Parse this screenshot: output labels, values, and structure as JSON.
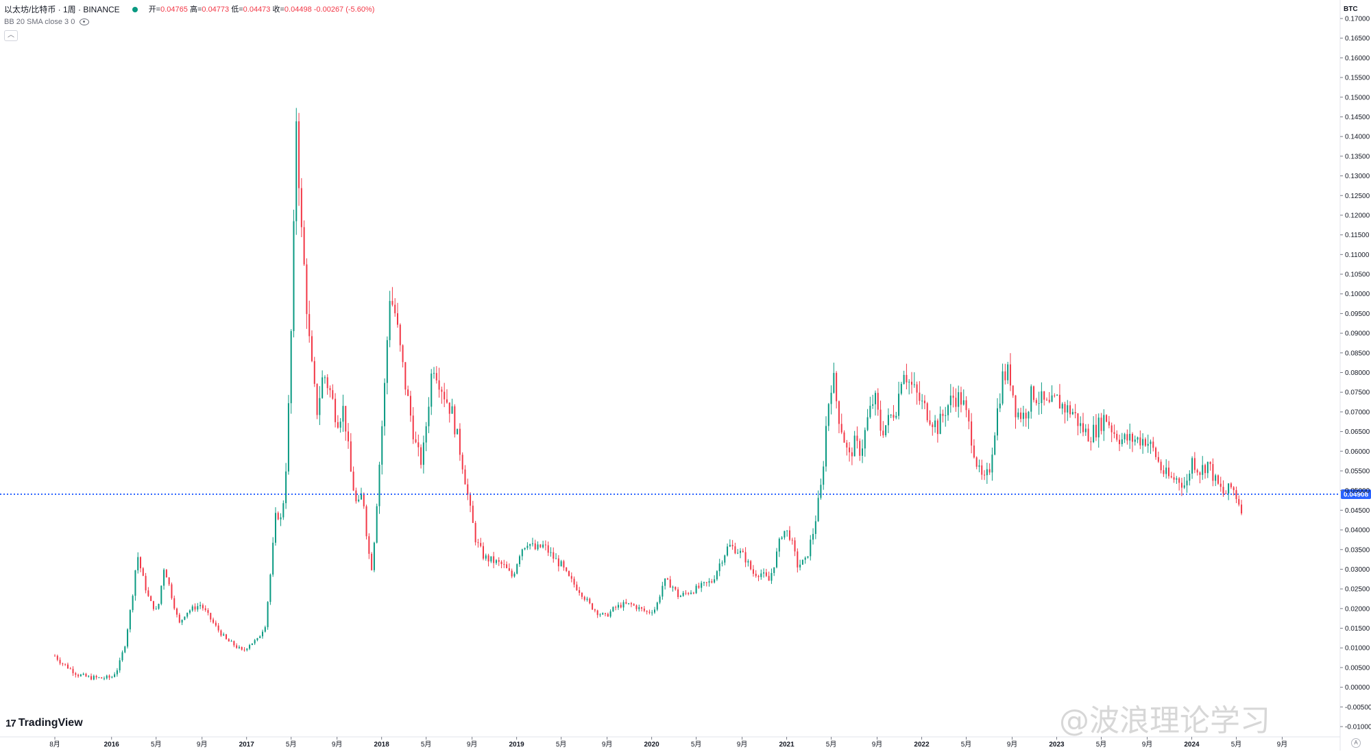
{
  "header": {
    "symbol_title": "以太坊/比特币 · 1周 · BINANCE",
    "ohlc": {
      "open_label": "开=",
      "open": "0.04765",
      "high_label": "高=",
      "high": "0.04773",
      "low_label": "低=",
      "low": "0.04473",
      "close_label": "收=",
      "close": "0.04498",
      "change": "-0.00267 (-5.60%)"
    },
    "indicator": "BB 20 SMA close 3 0",
    "collapse_icon": "chevron-up-icon"
  },
  "branding": {
    "logo_text": "TradingView"
  },
  "watermark": {
    "text": "@波浪理论学习"
  },
  "colors": {
    "up": "#089981",
    "down": "#f23645",
    "hline": "#2962ff",
    "axis_text": "#131722",
    "grid_border": "#e0e3eb"
  },
  "chart_data": {
    "type": "candlestick",
    "title": "以太坊/比特币 · 1周 · BINANCE",
    "y_unit": "BTC",
    "ylim": [
      -0.01,
      0.17
    ],
    "y_ticks": [
      "0.17000",
      "0.16500",
      "0.16000",
      "0.15500",
      "0.15000",
      "0.14500",
      "0.14000",
      "0.13500",
      "0.13000",
      "0.12500",
      "0.12000",
      "0.11500",
      "0.11000",
      "0.10500",
      "0.10000",
      "0.09500",
      "0.09000",
      "0.08500",
      "0.08000",
      "0.07500",
      "0.07000",
      "0.06500",
      "0.06000",
      "0.05500",
      "0.05000",
      "0.04500",
      "0.04000",
      "0.03500",
      "0.03000",
      "0.02500",
      "0.02000",
      "0.01500",
      "0.01000",
      "0.00500",
      "0.00000",
      "-0.00500",
      "-0.01000"
    ],
    "x_ticks": [
      {
        "label": "8月",
        "t": 2015.58,
        "bold": false
      },
      {
        "label": "2016",
        "t": 2016.0,
        "bold": true
      },
      {
        "label": "5月",
        "t": 2016.33,
        "bold": false
      },
      {
        "label": "9月",
        "t": 2016.67,
        "bold": false
      },
      {
        "label": "2017",
        "t": 2017.0,
        "bold": true
      },
      {
        "label": "5月",
        "t": 2017.33,
        "bold": false
      },
      {
        "label": "9月",
        "t": 2017.67,
        "bold": false
      },
      {
        "label": "2018",
        "t": 2018.0,
        "bold": true
      },
      {
        "label": "5月",
        "t": 2018.33,
        "bold": false
      },
      {
        "label": "9月",
        "t": 2018.67,
        "bold": false
      },
      {
        "label": "2019",
        "t": 2019.0,
        "bold": true
      },
      {
        "label": "5月",
        "t": 2019.33,
        "bold": false
      },
      {
        "label": "9月",
        "t": 2019.67,
        "bold": false
      },
      {
        "label": "2020",
        "t": 2020.0,
        "bold": true
      },
      {
        "label": "5月",
        "t": 2020.33,
        "bold": false
      },
      {
        "label": "9月",
        "t": 2020.67,
        "bold": false
      },
      {
        "label": "2021",
        "t": 2021.0,
        "bold": true
      },
      {
        "label": "5月",
        "t": 2021.33,
        "bold": false
      },
      {
        "label": "9月",
        "t": 2021.67,
        "bold": false
      },
      {
        "label": "2022",
        "t": 2022.0,
        "bold": true
      },
      {
        "label": "5月",
        "t": 2022.33,
        "bold": false
      },
      {
        "label": "9月",
        "t": 2022.67,
        "bold": false
      },
      {
        "label": "2023",
        "t": 2023.0,
        "bold": true
      },
      {
        "label": "5月",
        "t": 2023.33,
        "bold": false
      },
      {
        "label": "9月",
        "t": 2023.67,
        "bold": false
      },
      {
        "label": "2024",
        "t": 2024.0,
        "bold": true
      },
      {
        "label": "5月",
        "t": 2024.33,
        "bold": false
      },
      {
        "label": "9月",
        "t": 2024.67,
        "bold": false
      }
    ],
    "xlim": [
      2015.58,
      2024.82
    ],
    "horizontal_line": {
      "value": 0.04908,
      "label": "0.04908",
      "style": "dotted"
    },
    "close_series": [
      {
        "t": 2015.58,
        "v": 0.008
      },
      {
        "t": 2015.62,
        "v": 0.0065
      },
      {
        "t": 2015.68,
        "v": 0.005
      },
      {
        "t": 2015.75,
        "v": 0.0032
      },
      {
        "t": 2015.83,
        "v": 0.0025
      },
      {
        "t": 2015.92,
        "v": 0.0023
      },
      {
        "t": 2016.0,
        "v": 0.0025
      },
      {
        "t": 2016.05,
        "v": 0.005
      },
      {
        "t": 2016.1,
        "v": 0.011
      },
      {
        "t": 2016.15,
        "v": 0.022
      },
      {
        "t": 2016.19,
        "v": 0.034
      },
      {
        "t": 2016.23,
        "v": 0.028
      },
      {
        "t": 2016.28,
        "v": 0.022
      },
      {
        "t": 2016.34,
        "v": 0.019
      },
      {
        "t": 2016.39,
        "v": 0.031
      },
      {
        "t": 2016.44,
        "v": 0.024
      },
      {
        "t": 2016.5,
        "v": 0.016
      },
      {
        "t": 2016.55,
        "v": 0.019
      },
      {
        "t": 2016.6,
        "v": 0.02
      },
      {
        "t": 2016.66,
        "v": 0.021
      },
      {
        "t": 2016.72,
        "v": 0.018
      },
      {
        "t": 2016.78,
        "v": 0.015
      },
      {
        "t": 2016.85,
        "v": 0.012
      },
      {
        "t": 2016.92,
        "v": 0.0105
      },
      {
        "t": 2016.97,
        "v": 0.009
      },
      {
        "t": 2017.02,
        "v": 0.011
      },
      {
        "t": 2017.08,
        "v": 0.012
      },
      {
        "t": 2017.14,
        "v": 0.016
      },
      {
        "t": 2017.18,
        "v": 0.03
      },
      {
        "t": 2017.22,
        "v": 0.045
      },
      {
        "t": 2017.26,
        "v": 0.042
      },
      {
        "t": 2017.3,
        "v": 0.06
      },
      {
        "t": 2017.34,
        "v": 0.1
      },
      {
        "t": 2017.37,
        "v": 0.148
      },
      {
        "t": 2017.4,
        "v": 0.118
      },
      {
        "t": 2017.43,
        "v": 0.105
      },
      {
        "t": 2017.47,
        "v": 0.085
      },
      {
        "t": 2017.52,
        "v": 0.07
      },
      {
        "t": 2017.57,
        "v": 0.08
      },
      {
        "t": 2017.62,
        "v": 0.075
      },
      {
        "t": 2017.67,
        "v": 0.068
      },
      {
        "t": 2017.72,
        "v": 0.071
      },
      {
        "t": 2017.77,
        "v": 0.055
      },
      {
        "t": 2017.82,
        "v": 0.045
      },
      {
        "t": 2017.86,
        "v": 0.05
      },
      {
        "t": 2017.9,
        "v": 0.035
      },
      {
        "t": 2017.93,
        "v": 0.03
      },
      {
        "t": 2017.96,
        "v": 0.045
      },
      {
        "t": 2018.02,
        "v": 0.075
      },
      {
        "t": 2018.06,
        "v": 0.1
      },
      {
        "t": 2018.1,
        "v": 0.095
      },
      {
        "t": 2018.14,
        "v": 0.085
      },
      {
        "t": 2018.18,
        "v": 0.076
      },
      {
        "t": 2018.22,
        "v": 0.068
      },
      {
        "t": 2018.26,
        "v": 0.06
      },
      {
        "t": 2018.3,
        "v": 0.057
      },
      {
        "t": 2018.34,
        "v": 0.07
      },
      {
        "t": 2018.38,
        "v": 0.083
      },
      {
        "t": 2018.42,
        "v": 0.079
      },
      {
        "t": 2018.47,
        "v": 0.074
      },
      {
        "t": 2018.52,
        "v": 0.07
      },
      {
        "t": 2018.57,
        "v": 0.062
      },
      {
        "t": 2018.61,
        "v": 0.055
      },
      {
        "t": 2018.65,
        "v": 0.046
      },
      {
        "t": 2018.7,
        "v": 0.037
      },
      {
        "t": 2018.76,
        "v": 0.033
      },
      {
        "t": 2018.83,
        "v": 0.032
      },
      {
        "t": 2018.9,
        "v": 0.031
      },
      {
        "t": 2018.97,
        "v": 0.028
      },
      {
        "t": 2019.03,
        "v": 0.035
      },
      {
        "t": 2019.08,
        "v": 0.037
      },
      {
        "t": 2019.14,
        "v": 0.035
      },
      {
        "t": 2019.2,
        "v": 0.036
      },
      {
        "t": 2019.27,
        "v": 0.033
      },
      {
        "t": 2019.33,
        "v": 0.031
      },
      {
        "t": 2019.38,
        "v": 0.028
      },
      {
        "t": 2019.43,
        "v": 0.026
      },
      {
        "t": 2019.48,
        "v": 0.024
      },
      {
        "t": 2019.54,
        "v": 0.021
      },
      {
        "t": 2019.6,
        "v": 0.019
      },
      {
        "t": 2019.66,
        "v": 0.018
      },
      {
        "t": 2019.72,
        "v": 0.02
      },
      {
        "t": 2019.78,
        "v": 0.021
      },
      {
        "t": 2019.85,
        "v": 0.021
      },
      {
        "t": 2019.91,
        "v": 0.02
      },
      {
        "t": 2019.97,
        "v": 0.019
      },
      {
        "t": 2020.03,
        "v": 0.02
      },
      {
        "t": 2020.09,
        "v": 0.027
      },
      {
        "t": 2020.15,
        "v": 0.026
      },
      {
        "t": 2020.2,
        "v": 0.023
      },
      {
        "t": 2020.26,
        "v": 0.024
      },
      {
        "t": 2020.33,
        "v": 0.025
      },
      {
        "t": 2020.39,
        "v": 0.026
      },
      {
        "t": 2020.45,
        "v": 0.027
      },
      {
        "t": 2020.51,
        "v": 0.032
      },
      {
        "t": 2020.57,
        "v": 0.036
      },
      {
        "t": 2020.63,
        "v": 0.035
      },
      {
        "t": 2020.69,
        "v": 0.033
      },
      {
        "t": 2020.75,
        "v": 0.029
      },
      {
        "t": 2020.81,
        "v": 0.029
      },
      {
        "t": 2020.87,
        "v": 0.027
      },
      {
        "t": 2020.92,
        "v": 0.033
      },
      {
        "t": 2020.97,
        "v": 0.04
      },
      {
        "t": 2021.02,
        "v": 0.039
      },
      {
        "t": 2021.08,
        "v": 0.031
      },
      {
        "t": 2021.14,
        "v": 0.032
      },
      {
        "t": 2021.2,
        "v": 0.04
      },
      {
        "t": 2021.26,
        "v": 0.052
      },
      {
        "t": 2021.3,
        "v": 0.07
      },
      {
        "t": 2021.34,
        "v": 0.08
      },
      {
        "t": 2021.38,
        "v": 0.07
      },
      {
        "t": 2021.42,
        "v": 0.064
      },
      {
        "t": 2021.46,
        "v": 0.058
      },
      {
        "t": 2021.5,
        "v": 0.062
      },
      {
        "t": 2021.55,
        "v": 0.06
      },
      {
        "t": 2021.6,
        "v": 0.068
      },
      {
        "t": 2021.65,
        "v": 0.074
      },
      {
        "t": 2021.7,
        "v": 0.065
      },
      {
        "t": 2021.76,
        "v": 0.068
      },
      {
        "t": 2021.82,
        "v": 0.072
      },
      {
        "t": 2021.86,
        "v": 0.082
      },
      {
        "t": 2021.9,
        "v": 0.078
      },
      {
        "t": 2021.95,
        "v": 0.075
      },
      {
        "t": 2022.0,
        "v": 0.072
      },
      {
        "t": 2022.06,
        "v": 0.069
      },
      {
        "t": 2022.12,
        "v": 0.066
      },
      {
        "t": 2022.18,
        "v": 0.071
      },
      {
        "t": 2022.24,
        "v": 0.074
      },
      {
        "t": 2022.3,
        "v": 0.073
      },
      {
        "t": 2022.36,
        "v": 0.065
      },
      {
        "t": 2022.42,
        "v": 0.055
      },
      {
        "t": 2022.46,
        "v": 0.052
      },
      {
        "t": 2022.5,
        "v": 0.055
      },
      {
        "t": 2022.55,
        "v": 0.068
      },
      {
        "t": 2022.6,
        "v": 0.079
      },
      {
        "t": 2022.65,
        "v": 0.08
      },
      {
        "t": 2022.7,
        "v": 0.07
      },
      {
        "t": 2022.76,
        "v": 0.069
      },
      {
        "t": 2022.82,
        "v": 0.075
      },
      {
        "t": 2022.88,
        "v": 0.073
      },
      {
        "t": 2022.94,
        "v": 0.071
      },
      {
        "t": 2023.0,
        "v": 0.073
      },
      {
        "t": 2023.06,
        "v": 0.071
      },
      {
        "t": 2023.12,
        "v": 0.07
      },
      {
        "t": 2023.18,
        "v": 0.066
      },
      {
        "t": 2023.24,
        "v": 0.064
      },
      {
        "t": 2023.3,
        "v": 0.066
      },
      {
        "t": 2023.36,
        "v": 0.069
      },
      {
        "t": 2023.42,
        "v": 0.065
      },
      {
        "t": 2023.48,
        "v": 0.063
      },
      {
        "t": 2023.54,
        "v": 0.063
      },
      {
        "t": 2023.6,
        "v": 0.063
      },
      {
        "t": 2023.66,
        "v": 0.063
      },
      {
        "t": 2023.72,
        "v": 0.06
      },
      {
        "t": 2023.78,
        "v": 0.055
      },
      {
        "t": 2023.84,
        "v": 0.053
      },
      {
        "t": 2023.9,
        "v": 0.053
      },
      {
        "t": 2023.96,
        "v": 0.051
      },
      {
        "t": 2024.0,
        "v": 0.058
      },
      {
        "t": 2024.06,
        "v": 0.055
      },
      {
        "t": 2024.12,
        "v": 0.057
      },
      {
        "t": 2024.18,
        "v": 0.052
      },
      {
        "t": 2024.24,
        "v": 0.049
      },
      {
        "t": 2024.3,
        "v": 0.051
      },
      {
        "t": 2024.35,
        "v": 0.047
      },
      {
        "t": 2024.38,
        "v": 0.045
      }
    ]
  }
}
